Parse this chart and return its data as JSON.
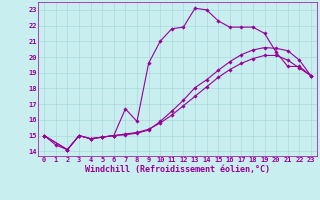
{
  "xlabel": "Windchill (Refroidissement éolien,°C)",
  "bg_color": "#c8eef0",
  "grid_color": "#aad8dc",
  "line_color": "#990099",
  "xlim": [
    -0.5,
    23.5
  ],
  "ylim": [
    13.7,
    23.5
  ],
  "xticks": [
    0,
    1,
    2,
    3,
    4,
    5,
    6,
    7,
    8,
    9,
    10,
    11,
    12,
    13,
    14,
    15,
    16,
    17,
    18,
    19,
    20,
    21,
    22,
    23
  ],
  "yticks": [
    14,
    15,
    16,
    17,
    18,
    19,
    20,
    21,
    22,
    23
  ],
  "line1_x": [
    0,
    1,
    2,
    3,
    4,
    5,
    6,
    7,
    8,
    9,
    10,
    11,
    12,
    13,
    14,
    15,
    16,
    17,
    18,
    19,
    20,
    21,
    22,
    23
  ],
  "line1_y": [
    15.0,
    14.4,
    14.1,
    15.0,
    14.8,
    14.9,
    15.0,
    16.7,
    15.9,
    19.6,
    21.0,
    21.8,
    21.9,
    23.1,
    23.0,
    22.3,
    21.9,
    21.9,
    21.9,
    21.5,
    20.3,
    19.4,
    19.4,
    18.8
  ],
  "line2_x": [
    0,
    2,
    3,
    4,
    5,
    6,
    7,
    8,
    9,
    10,
    11,
    12,
    13,
    14,
    15,
    16,
    17,
    18,
    19,
    20,
    21,
    22,
    23
  ],
  "line2_y": [
    15.0,
    14.1,
    15.0,
    14.8,
    14.9,
    15.0,
    15.1,
    15.2,
    15.4,
    15.8,
    16.3,
    16.9,
    17.5,
    18.1,
    18.7,
    19.2,
    19.6,
    19.9,
    20.1,
    20.1,
    19.8,
    19.3,
    18.8
  ],
  "line3_x": [
    0,
    2,
    3,
    4,
    5,
    6,
    7,
    8,
    9,
    10,
    11,
    12,
    13,
    14,
    15,
    16,
    17,
    18,
    19,
    20,
    21,
    22,
    23
  ],
  "line3_y": [
    15.0,
    14.1,
    15.0,
    14.8,
    14.9,
    15.0,
    15.05,
    15.15,
    15.35,
    15.9,
    16.55,
    17.25,
    18.05,
    18.55,
    19.15,
    19.7,
    20.15,
    20.45,
    20.6,
    20.55,
    20.4,
    19.8,
    18.8
  ],
  "marker": "D",
  "markersize": 1.8,
  "linewidth": 0.8,
  "tick_fontsize": 5.0,
  "xlabel_fontsize": 6.0
}
